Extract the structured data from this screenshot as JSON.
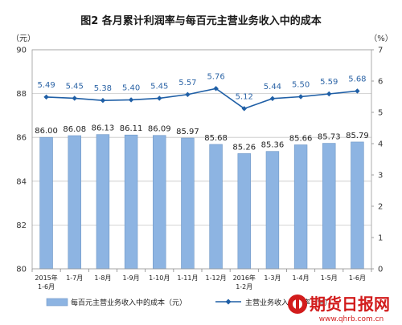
{
  "chart_data": {
    "type": "bar",
    "title": "图2 各月累计利润率与每百元主营业务收入中的成本",
    "left_unit": "（元）",
    "right_unit": "（%）",
    "categories": [
      "2015年\n1-6月",
      "1-7月",
      "1-8月",
      "1-9月",
      "1-10月",
      "1-11月",
      "1-12月",
      "2016年\n1-2月",
      "1-3月",
      "1-4月",
      "1-5月",
      "1-6月"
    ],
    "series": [
      {
        "name": "每百元主营业务收入中的成本（元）",
        "type": "bar",
        "axis": "left",
        "color": "#8db4e2",
        "values": [
          86.0,
          86.08,
          86.13,
          86.11,
          86.09,
          85.97,
          85.68,
          85.26,
          85.36,
          85.66,
          85.73,
          85.79
        ],
        "labels": [
          "86.00",
          "86.08",
          "86.13",
          "86.11",
          "86.09",
          "85.97",
          "85.68",
          "85.26",
          "85.36",
          "85.66",
          "85.73",
          "85.79"
        ]
      },
      {
        "name": "主营业务收入利润率（%）",
        "type": "line",
        "axis": "right",
        "color": "#1f5fa6",
        "values": [
          5.49,
          5.45,
          5.38,
          5.4,
          5.45,
          5.57,
          5.76,
          5.12,
          5.44,
          5.5,
          5.59,
          5.68
        ],
        "labels": [
          "5.49",
          "5.45",
          "5.38",
          "5.40",
          "5.45",
          "5.57",
          "5.76",
          "5.12",
          "5.44",
          "5.50",
          "5.59",
          "5.68"
        ]
      }
    ],
    "ylim_left": [
      80,
      90
    ],
    "yticks_left": [
      "80",
      "82",
      "84",
      "86",
      "88",
      "90"
    ],
    "ylim_right": [
      0,
      7
    ],
    "yticks_right": [
      "0",
      "1",
      "2",
      "3",
      "4",
      "5",
      "6",
      "7"
    ],
    "grid": true,
    "legend_position": "bottom"
  },
  "watermark": {
    "text": "期货日报网",
    "url": "www.qhrb.com.cn"
  }
}
